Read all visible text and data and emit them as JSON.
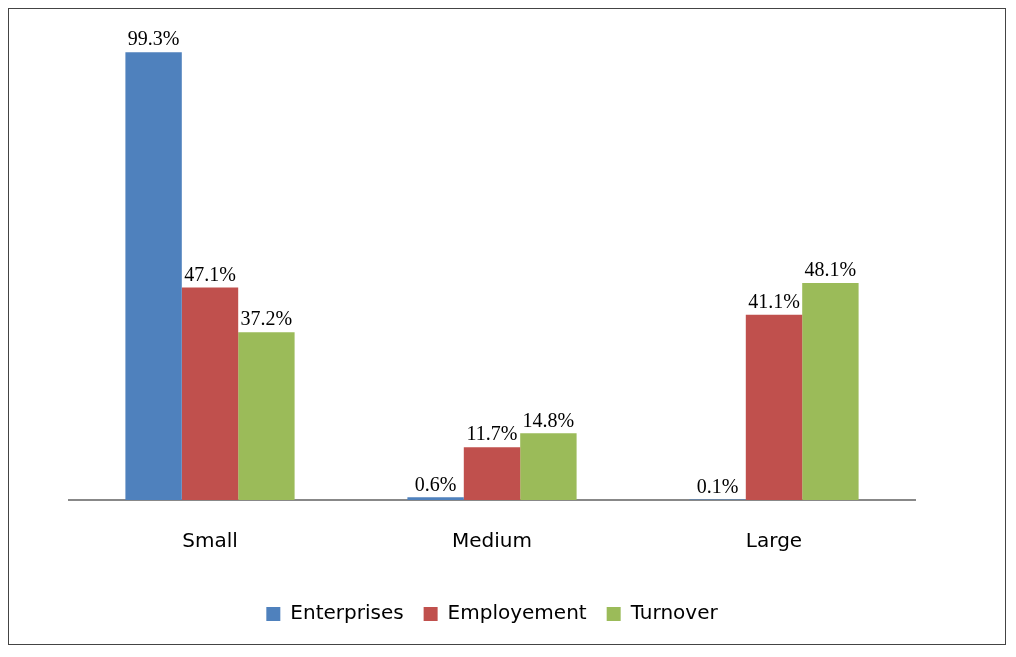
{
  "chart_data": {
    "type": "bar",
    "categories": [
      "Small",
      "Medium",
      "Large"
    ],
    "series": [
      {
        "name": "Enterprises",
        "color": "#4f81bd",
        "values": [
          99.3,
          0.6,
          0.1
        ],
        "value_labels": [
          "99.3%",
          "0.6%",
          "0.1%"
        ]
      },
      {
        "name": "Employement",
        "color": "#c0504d",
        "values": [
          47.1,
          11.7,
          41.1
        ],
        "value_labels": [
          "47.1%",
          "11.7%",
          "41.1%"
        ]
      },
      {
        "name": "Turnover",
        "color": "#9bbb59",
        "values": [
          37.2,
          14.8,
          48.1
        ],
        "value_labels": [
          "37.2%",
          "14.8%",
          "48.1%"
        ]
      }
    ],
    "grid": false,
    "legend": "bottom",
    "tick_labels": "x"
  }
}
